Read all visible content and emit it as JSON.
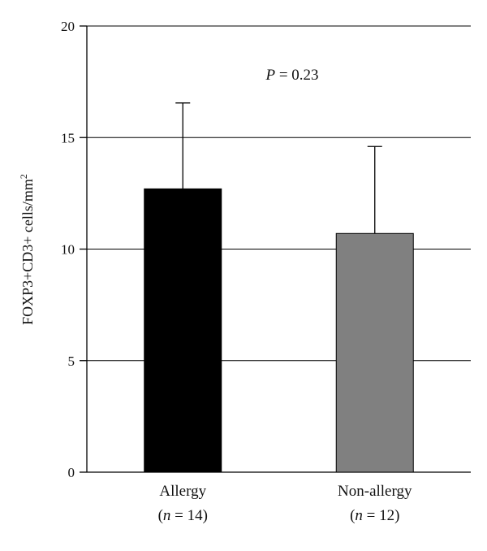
{
  "chart_data": {
    "type": "bar",
    "ylabel": "FOXP3+CD3+ cells/mm",
    "ylabel_superscript": "2",
    "ylim": [
      0,
      20
    ],
    "yticks": [
      0,
      5,
      10,
      15,
      20
    ],
    "grid": true,
    "annotation": {
      "italic": "P",
      "rest": " = 0.23"
    },
    "categories": [
      {
        "name": "Allergy",
        "n_label": "n",
        "n_value": " = 14)",
        "open": "("
      },
      {
        "name": "Non-allergy",
        "n_label": "n",
        "n_value": " = 12)",
        "open": "("
      }
    ],
    "values": [
      12.7,
      10.7
    ],
    "error_upper": [
      16.55,
      14.6
    ],
    "colors": [
      "#000000",
      "#808080"
    ]
  }
}
